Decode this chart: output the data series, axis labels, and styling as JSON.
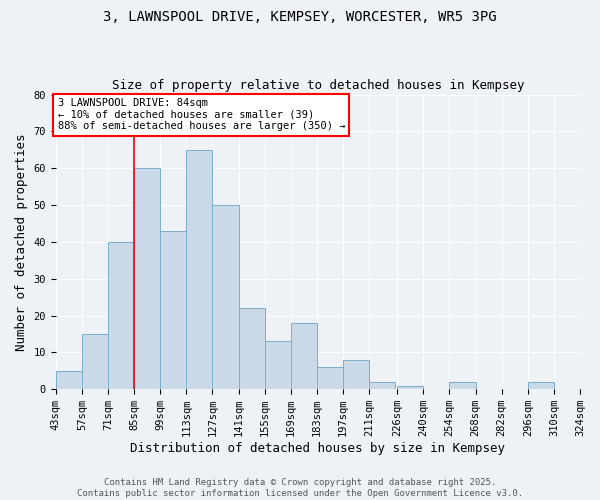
{
  "title": "3, LAWNSPOOL DRIVE, KEMPSEY, WORCESTER, WR5 3PG",
  "subtitle": "Size of property relative to detached houses in Kempsey",
  "xlabel": "Distribution of detached houses by size in Kempsey",
  "ylabel": "Number of detached properties",
  "bin_edges": [
    43,
    57,
    71,
    85,
    99,
    113,
    127,
    141,
    155,
    169,
    183,
    197,
    211,
    226,
    240,
    254,
    268,
    282,
    296,
    310,
    324
  ],
  "bar_heights": [
    5,
    15,
    40,
    60,
    43,
    65,
    50,
    22,
    13,
    18,
    6,
    8,
    2,
    1,
    0,
    2,
    0,
    0,
    2,
    0
  ],
  "bar_color": "#c9d9e8",
  "bar_edge_color": "#7aaeca",
  "red_line_x": 85,
  "annotation_text": "3 LAWNSPOOL DRIVE: 84sqm\n← 10% of detached houses are smaller (39)\n88% of semi-detached houses are larger (350) →",
  "annotation_box_color": "white",
  "annotation_box_edge_color": "red",
  "red_line_color": "red",
  "ylim": [
    0,
    80
  ],
  "yticks": [
    0,
    10,
    20,
    30,
    40,
    50,
    60,
    70,
    80
  ],
  "background_color": "#eef2f7",
  "footer_text": "Contains HM Land Registry data © Crown copyright and database right 2025.\nContains public sector information licensed under the Open Government Licence v3.0.",
  "title_fontsize": 10,
  "subtitle_fontsize": 9,
  "axis_label_fontsize": 9,
  "tick_label_fontsize": 7.5,
  "annotation_fontsize": 7.5,
  "footer_fontsize": 6.5
}
